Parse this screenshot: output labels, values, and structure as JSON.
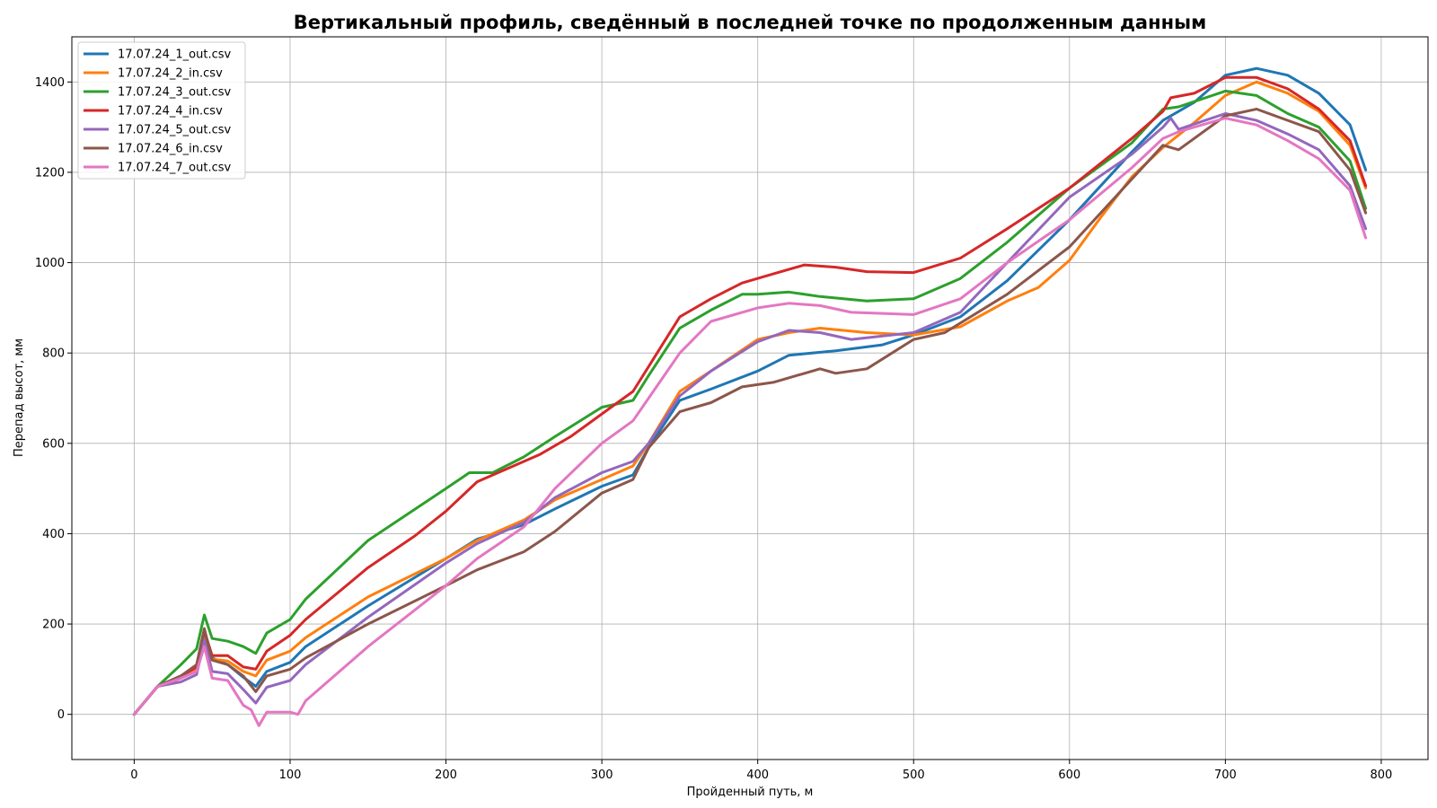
{
  "chart_data": {
    "type": "line",
    "title": "Вертикальный профиль, сведённый в последней точке по продолженным данным",
    "xlabel": "Пройденный путь, м",
    "ylabel": "Перепад высот, мм",
    "xlim": [
      -40,
      830
    ],
    "ylim": [
      -100,
      1500
    ],
    "xticks": [
      0,
      100,
      200,
      300,
      400,
      500,
      600,
      700,
      800
    ],
    "yticks": [
      0,
      200,
      400,
      600,
      800,
      1000,
      1200,
      1400
    ],
    "grid": true,
    "legend_position": "top-left",
    "series": [
      {
        "name": "17.07.24_1_out.csv",
        "color": "#1f77b4",
        "points": [
          [
            0,
            0
          ],
          [
            15,
            62
          ],
          [
            30,
            85
          ],
          [
            40,
            100
          ],
          [
            45,
            170
          ],
          [
            50,
            125
          ],
          [
            60,
            110
          ],
          [
            70,
            82
          ],
          [
            78,
            62
          ],
          [
            85,
            95
          ],
          [
            100,
            115
          ],
          [
            110,
            150
          ],
          [
            150,
            240
          ],
          [
            200,
            345
          ],
          [
            220,
            388
          ],
          [
            250,
            420
          ],
          [
            270,
            455
          ],
          [
            300,
            505
          ],
          [
            320,
            530
          ],
          [
            330,
            590
          ],
          [
            350,
            695
          ],
          [
            370,
            720
          ],
          [
            400,
            760
          ],
          [
            420,
            795
          ],
          [
            450,
            805
          ],
          [
            480,
            818
          ],
          [
            500,
            840
          ],
          [
            530,
            880
          ],
          [
            560,
            960
          ],
          [
            600,
            1095
          ],
          [
            640,
            1245
          ],
          [
            660,
            1315
          ],
          [
            680,
            1355
          ],
          [
            700,
            1415
          ],
          [
            720,
            1430
          ],
          [
            740,
            1415
          ],
          [
            760,
            1375
          ],
          [
            780,
            1305
          ],
          [
            790,
            1205
          ]
        ]
      },
      {
        "name": "17.07.24_2_in.csv",
        "color": "#ff7f0e",
        "points": [
          [
            0,
            0
          ],
          [
            15,
            62
          ],
          [
            30,
            80
          ],
          [
            40,
            100
          ],
          [
            45,
            168
          ],
          [
            50,
            122
          ],
          [
            60,
            118
          ],
          [
            70,
            95
          ],
          [
            78,
            85
          ],
          [
            85,
            120
          ],
          [
            100,
            140
          ],
          [
            110,
            170
          ],
          [
            150,
            260
          ],
          [
            200,
            345
          ],
          [
            220,
            385
          ],
          [
            250,
            430
          ],
          [
            270,
            475
          ],
          [
            300,
            520
          ],
          [
            320,
            550
          ],
          [
            330,
            600
          ],
          [
            350,
            715
          ],
          [
            370,
            760
          ],
          [
            400,
            830
          ],
          [
            420,
            845
          ],
          [
            440,
            855
          ],
          [
            470,
            845
          ],
          [
            500,
            840
          ],
          [
            530,
            858
          ],
          [
            560,
            915
          ],
          [
            580,
            945
          ],
          [
            600,
            1005
          ],
          [
            620,
            1100
          ],
          [
            640,
            1190
          ],
          [
            660,
            1255
          ],
          [
            680,
            1310
          ],
          [
            700,
            1370
          ],
          [
            720,
            1400
          ],
          [
            740,
            1375
          ],
          [
            760,
            1335
          ],
          [
            780,
            1260
          ],
          [
            790,
            1165
          ]
        ]
      },
      {
        "name": "17.07.24_3_out.csv",
        "color": "#2ca02c",
        "points": [
          [
            0,
            0
          ],
          [
            15,
            62
          ],
          [
            30,
            110
          ],
          [
            40,
            145
          ],
          [
            45,
            220
          ],
          [
            50,
            168
          ],
          [
            60,
            162
          ],
          [
            70,
            150
          ],
          [
            78,
            135
          ],
          [
            85,
            180
          ],
          [
            100,
            210
          ],
          [
            110,
            255
          ],
          [
            150,
            385
          ],
          [
            200,
            500
          ],
          [
            215,
            535
          ],
          [
            230,
            535
          ],
          [
            250,
            570
          ],
          [
            270,
            615
          ],
          [
            300,
            680
          ],
          [
            320,
            695
          ],
          [
            330,
            750
          ],
          [
            350,
            855
          ],
          [
            370,
            895
          ],
          [
            390,
            930
          ],
          [
            400,
            930
          ],
          [
            420,
            935
          ],
          [
            440,
            925
          ],
          [
            470,
            915
          ],
          [
            500,
            920
          ],
          [
            530,
            965
          ],
          [
            560,
            1045
          ],
          [
            600,
            1165
          ],
          [
            640,
            1265
          ],
          [
            660,
            1340
          ],
          [
            670,
            1345
          ],
          [
            700,
            1380
          ],
          [
            720,
            1370
          ],
          [
            740,
            1330
          ],
          [
            760,
            1300
          ],
          [
            780,
            1225
          ],
          [
            790,
            1120
          ]
        ]
      },
      {
        "name": "17.07.24_4_in.csv",
        "color": "#d62728",
        "points": [
          [
            0,
            0
          ],
          [
            15,
            62
          ],
          [
            30,
            85
          ],
          [
            40,
            105
          ],
          [
            45,
            185
          ],
          [
            50,
            130
          ],
          [
            60,
            130
          ],
          [
            70,
            105
          ],
          [
            78,
            100
          ],
          [
            85,
            140
          ],
          [
            100,
            175
          ],
          [
            110,
            210
          ],
          [
            150,
            325
          ],
          [
            180,
            395
          ],
          [
            200,
            450
          ],
          [
            220,
            515
          ],
          [
            240,
            545
          ],
          [
            260,
            575
          ],
          [
            280,
            615
          ],
          [
            300,
            665
          ],
          [
            320,
            715
          ],
          [
            330,
            770
          ],
          [
            350,
            880
          ],
          [
            370,
            920
          ],
          [
            390,
            955
          ],
          [
            410,
            975
          ],
          [
            430,
            995
          ],
          [
            450,
            990
          ],
          [
            470,
            980
          ],
          [
            500,
            978
          ],
          [
            530,
            1010
          ],
          [
            560,
            1075
          ],
          [
            600,
            1165
          ],
          [
            640,
            1275
          ],
          [
            660,
            1335
          ],
          [
            665,
            1365
          ],
          [
            680,
            1375
          ],
          [
            700,
            1410
          ],
          [
            720,
            1410
          ],
          [
            740,
            1385
          ],
          [
            760,
            1340
          ],
          [
            780,
            1270
          ],
          [
            790,
            1170
          ]
        ]
      },
      {
        "name": "17.07.24_5_out.csv",
        "color": "#9467bd",
        "points": [
          [
            0,
            0
          ],
          [
            15,
            62
          ],
          [
            30,
            72
          ],
          [
            40,
            88
          ],
          [
            45,
            165
          ],
          [
            50,
            95
          ],
          [
            60,
            90
          ],
          [
            70,
            55
          ],
          [
            78,
            25
          ],
          [
            85,
            60
          ],
          [
            100,
            75
          ],
          [
            110,
            110
          ],
          [
            150,
            215
          ],
          [
            200,
            335
          ],
          [
            220,
            378
          ],
          [
            250,
            425
          ],
          [
            270,
            480
          ],
          [
            300,
            535
          ],
          [
            320,
            560
          ],
          [
            330,
            600
          ],
          [
            350,
            705
          ],
          [
            370,
            760
          ],
          [
            400,
            825
          ],
          [
            420,
            850
          ],
          [
            440,
            845
          ],
          [
            460,
            830
          ],
          [
            500,
            845
          ],
          [
            530,
            890
          ],
          [
            560,
            1000
          ],
          [
            600,
            1145
          ],
          [
            640,
            1240
          ],
          [
            660,
            1300
          ],
          [
            665,
            1320
          ],
          [
            670,
            1295
          ],
          [
            700,
            1330
          ],
          [
            720,
            1315
          ],
          [
            740,
            1285
          ],
          [
            760,
            1250
          ],
          [
            780,
            1170
          ],
          [
            790,
            1075
          ]
        ]
      },
      {
        "name": "17.07.24_6_in.csv",
        "color": "#8c564b",
        "points": [
          [
            0,
            0
          ],
          [
            15,
            62
          ],
          [
            30,
            85
          ],
          [
            40,
            110
          ],
          [
            45,
            190
          ],
          [
            50,
            120
          ],
          [
            60,
            110
          ],
          [
            70,
            85
          ],
          [
            78,
            50
          ],
          [
            85,
            85
          ],
          [
            100,
            100
          ],
          [
            110,
            125
          ],
          [
            150,
            200
          ],
          [
            200,
            285
          ],
          [
            220,
            320
          ],
          [
            250,
            360
          ],
          [
            270,
            405
          ],
          [
            300,
            490
          ],
          [
            320,
            520
          ],
          [
            330,
            590
          ],
          [
            350,
            670
          ],
          [
            370,
            690
          ],
          [
            390,
            725
          ],
          [
            410,
            735
          ],
          [
            440,
            765
          ],
          [
            450,
            755
          ],
          [
            470,
            765
          ],
          [
            500,
            830
          ],
          [
            520,
            845
          ],
          [
            560,
            930
          ],
          [
            600,
            1035
          ],
          [
            640,
            1185
          ],
          [
            660,
            1260
          ],
          [
            670,
            1250
          ],
          [
            700,
            1325
          ],
          [
            720,
            1340
          ],
          [
            740,
            1315
          ],
          [
            760,
            1290
          ],
          [
            780,
            1205
          ],
          [
            790,
            1110
          ]
        ]
      },
      {
        "name": "17.07.24_7_out.csv",
        "color": "#e377c2",
        "points": [
          [
            0,
            0
          ],
          [
            15,
            62
          ],
          [
            30,
            80
          ],
          [
            40,
            95
          ],
          [
            45,
            150
          ],
          [
            50,
            80
          ],
          [
            60,
            75
          ],
          [
            70,
            20
          ],
          [
            75,
            10
          ],
          [
            80,
            -25
          ],
          [
            85,
            5
          ],
          [
            100,
            5
          ],
          [
            105,
            0
          ],
          [
            110,
            30
          ],
          [
            150,
            150
          ],
          [
            200,
            285
          ],
          [
            220,
            345
          ],
          [
            250,
            415
          ],
          [
            270,
            500
          ],
          [
            300,
            600
          ],
          [
            320,
            650
          ],
          [
            330,
            700
          ],
          [
            350,
            800
          ],
          [
            370,
            870
          ],
          [
            400,
            900
          ],
          [
            420,
            910
          ],
          [
            440,
            905
          ],
          [
            460,
            890
          ],
          [
            500,
            885
          ],
          [
            530,
            920
          ],
          [
            560,
            1000
          ],
          [
            600,
            1095
          ],
          [
            640,
            1210
          ],
          [
            660,
            1275
          ],
          [
            670,
            1290
          ],
          [
            700,
            1320
          ],
          [
            720,
            1305
          ],
          [
            740,
            1270
          ],
          [
            760,
            1230
          ],
          [
            780,
            1160
          ],
          [
            790,
            1055
          ]
        ]
      }
    ]
  }
}
